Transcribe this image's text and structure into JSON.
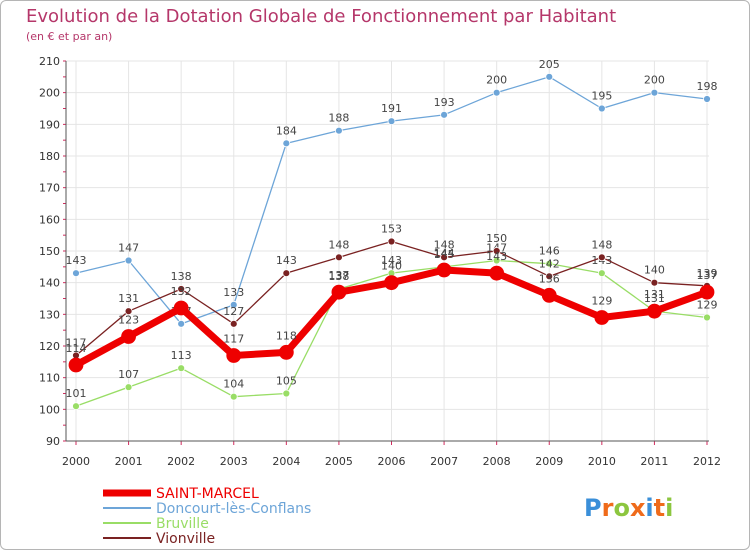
{
  "chart_data": {
    "type": "line",
    "title": "Evolution de la Dotation Globale de Fonctionnement par Habitant",
    "subtitle": "(en € et par an)",
    "xlabel": "",
    "ylabel": "",
    "categories": [
      "2000",
      "2001",
      "2002",
      "2003",
      "2004",
      "2005",
      "2006",
      "2007",
      "2008",
      "2009",
      "2010",
      "2011",
      "2012"
    ],
    "ylim": [
      90,
      210
    ],
    "yticks": [
      90,
      100,
      110,
      120,
      130,
      140,
      150,
      160,
      170,
      180,
      190,
      200,
      210
    ],
    "grid": true,
    "legend_position": "bottom-left",
    "series": [
      {
        "name": "SAINT-MARCEL",
        "color": "#ee0000",
        "values": [
          114,
          123,
          132,
          117,
          118,
          137,
          140,
          144,
          143,
          136,
          129,
          131,
          137
        ]
      },
      {
        "name": "Doncourt-lès-Conflans",
        "color": "#6da5d8",
        "values": [
          143,
          147,
          127,
          133,
          184,
          188,
          191,
          193,
          200,
          205,
          195,
          200,
          198
        ]
      },
      {
        "name": "Bruville",
        "color": "#99dd66",
        "values": [
          101,
          107,
          113,
          104,
          105,
          138,
          143,
          145,
          147,
          146,
          143,
          131,
          129
        ]
      },
      {
        "name": "Vionville",
        "color": "#7a2222",
        "values": [
          117,
          131,
          138,
          127,
          143,
          148,
          153,
          148,
          150,
          142,
          148,
          140,
          139
        ]
      }
    ]
  },
  "brand": {
    "text": "Proxiti",
    "letter_colors": [
      "#3a8fd9",
      "#ef6b1b",
      "#8cc63f",
      "#ef6b1b",
      "#3a8fd9",
      "#ef6b1b",
      "#8cc63f"
    ]
  }
}
